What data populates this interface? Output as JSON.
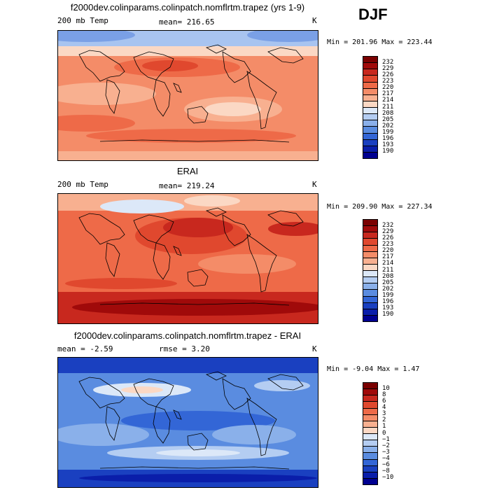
{
  "season_label": "DJF",
  "panels": [
    {
      "title": "f2000dev.colinparams.colinpatch.nomflrtm.trapez (yrs 1-9)",
      "left_label": "200 mb Temp",
      "center_label": "mean= 216.65",
      "units": "K",
      "minmax": "Min = 201.96 Max = 223.44",
      "colorbar": {
        "labels": [
          "232",
          "229",
          "226",
          "223",
          "220",
          "217",
          "214",
          "211",
          "208",
          "205",
          "202",
          "199",
          "196",
          "193",
          "190"
        ],
        "colors": [
          "#7a0000",
          "#a00a0a",
          "#c8281e",
          "#e0482e",
          "#ee6a48",
          "#f48c68",
          "#f8b090",
          "#fbd8c4",
          "#dce8f8",
          "#b4cdf2",
          "#8ab0ea",
          "#5a8ce0",
          "#3366d6",
          "#1a40c0",
          "#0a1eaa",
          "#000090"
        ]
      },
      "field_levels": [
        "#7aa0e6",
        "#a8c4f0",
        "#dce8f8",
        "#fbd8c4",
        "#f8b090",
        "#f48c68",
        "#ee6a48",
        "#e0482e"
      ]
    },
    {
      "title": "ERAI",
      "left_label": "200 mb Temp",
      "center_label": "mean= 219.24",
      "units": "K",
      "minmax": "Min = 209.90 Max = 227.34",
      "colorbar": {
        "labels": [
          "232",
          "229",
          "226",
          "223",
          "220",
          "217",
          "214",
          "211",
          "208",
          "205",
          "202",
          "199",
          "196",
          "193",
          "190"
        ],
        "colors": [
          "#7a0000",
          "#a00a0a",
          "#c8281e",
          "#e0482e",
          "#ee6a48",
          "#f48c68",
          "#f8b090",
          "#fbd8c4",
          "#dce8f8",
          "#b4cdf2",
          "#8ab0ea",
          "#5a8ce0",
          "#3366d6",
          "#1a40c0",
          "#0a1eaa",
          "#000090"
        ]
      },
      "field_levels": [
        "#dce8f8",
        "#fbd8c4",
        "#f8b090",
        "#f48c68",
        "#ee6a48",
        "#e0482e",
        "#c8281e",
        "#a00a0a"
      ]
    },
    {
      "title": "f2000dev.colinparams.colinpatch.nomflrtm.trapez - ERAI",
      "left_label": "mean =   -2.59",
      "center_label": "rmse =    3.20",
      "units": "K",
      "minmax": "Min =  -9.04 Max =   1.47",
      "colorbar": {
        "labels": [
          "10",
          "8",
          "6",
          "4",
          "3",
          "2",
          "1",
          "0",
          "−1",
          "−2",
          "−3",
          "−4",
          "−6",
          "−8",
          "−10"
        ],
        "colors": [
          "#7a0000",
          "#a00a0a",
          "#c8281e",
          "#e0482e",
          "#ee6a48",
          "#f48c68",
          "#f8b090",
          "#fbd8c4",
          "#dce8f8",
          "#b4cdf2",
          "#8ab0ea",
          "#5a8ce0",
          "#3366d6",
          "#1a40c0",
          "#0a1eaa",
          "#000090"
        ]
      },
      "field_levels": [
        "#0a1eaa",
        "#1a40c0",
        "#3366d6",
        "#5a8ce0",
        "#8ab0ea",
        "#b4cdf2",
        "#dce8f8",
        "#fbd8c4"
      ]
    }
  ]
}
